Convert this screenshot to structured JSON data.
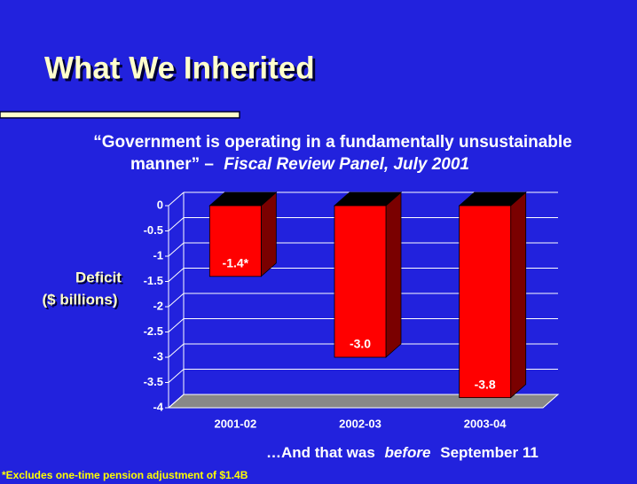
{
  "chart_data": {
    "type": "bar3d",
    "title": "What We Inherited",
    "subtitle": [
      "“Government is operating in a fundamentally unsustainable",
      "manner” –",
      "Fiscal Review Panel, July 2001"
    ],
    "y_label": [
      "Deficit",
      "($ billions)"
    ],
    "categories": [
      "2001-02",
      "2002-03",
      "2003-04"
    ],
    "values": [
      -1.4,
      -3.0,
      -3.8
    ],
    "value_labels": [
      "-1.4*",
      "-3.0",
      "-3.8"
    ],
    "color": "#ff0000",
    "ylim": [
      -4,
      0
    ],
    "yticks": [
      0,
      -0.5,
      -1,
      -1.5,
      -2,
      -2.5,
      -3,
      -3.5,
      -4
    ],
    "grid": true,
    "annotation": [
      "…And that was",
      "before",
      "September 11"
    ],
    "footnote": "*Excludes one-time pension adjustment of $1.4B"
  }
}
